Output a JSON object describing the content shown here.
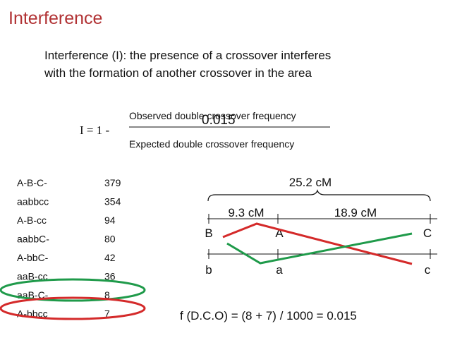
{
  "title": "Interference",
  "definition": {
    "line1": "Interference (I): the presence of a crossover interferes",
    "line2": "with the formation of another crossover in the area"
  },
  "formula": {
    "lhs": "I = 1 -",
    "numerator": "Observed double crossover frequency",
    "overlay_value": "0.015",
    "denominator": "Expected double crossover frequency"
  },
  "phenotypes": [
    {
      "label": "A-B-C-",
      "count": "379"
    },
    {
      "label": "aabbcc",
      "count": "354"
    },
    {
      "label": "A-B-cc",
      "count": "94"
    },
    {
      "label": "aabbC-",
      "count": "80"
    },
    {
      "label": "A-bbC-",
      "count": "42"
    },
    {
      "label": "aaB-cc",
      "count": "36"
    },
    {
      "label": "aaB-C-",
      "count": "8"
    },
    {
      "label": "A-bbcc",
      "count": "7"
    }
  ],
  "map": {
    "total_distance": "25.2 cM",
    "left_distance": "9.3 cM",
    "right_distance": "18.9 cM",
    "top_alleles": [
      "B",
      "A",
      "C"
    ],
    "bottom_alleles": [
      "b",
      "a",
      "c"
    ]
  },
  "calculation": "f (D.C.O) = (8 + 7) / 1000 = 0.015",
  "colors": {
    "title": "#b13234",
    "red": "#d42a2a",
    "green": "#1f9a4a"
  }
}
